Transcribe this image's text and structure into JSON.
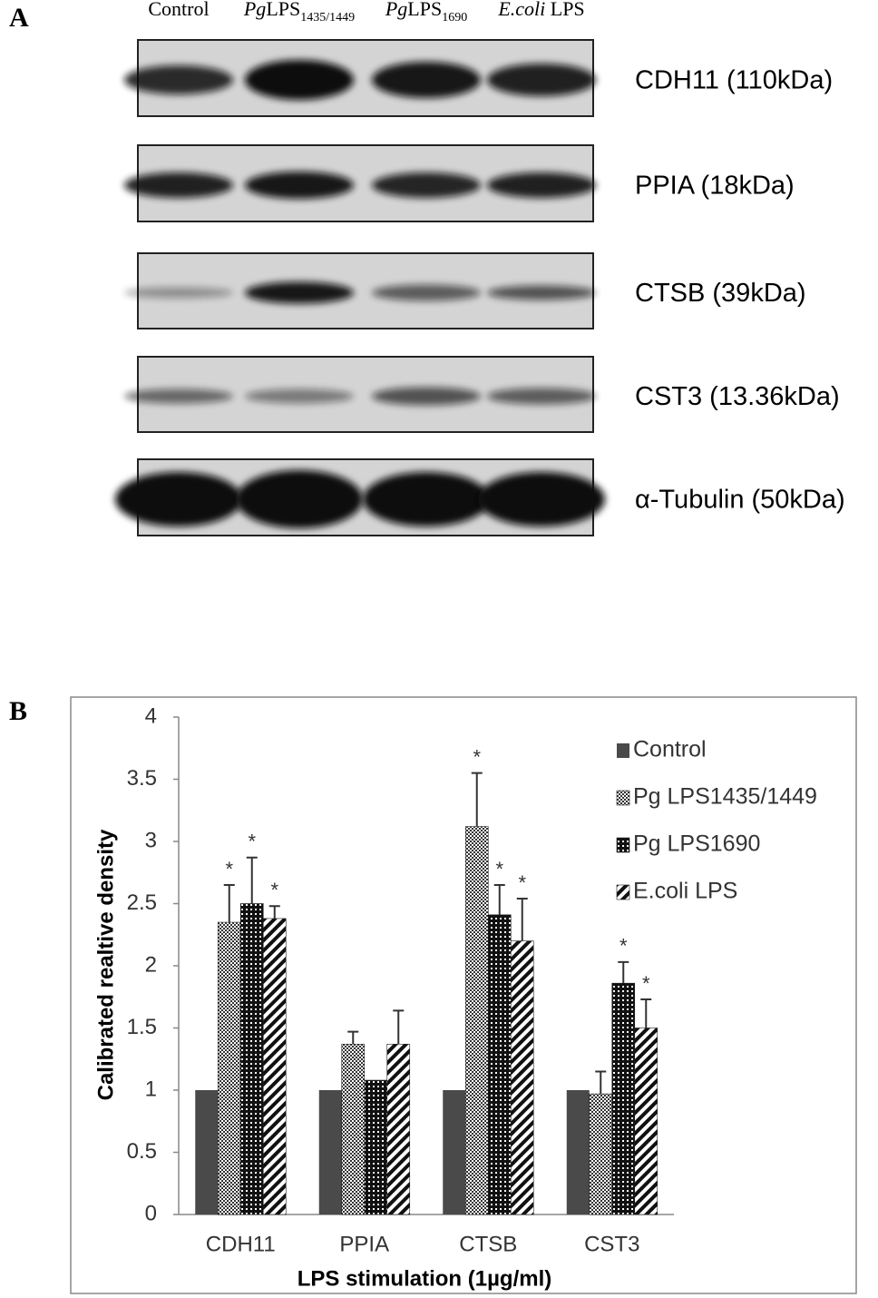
{
  "panel_a": {
    "label": "A",
    "lanes": [
      [
        {
          "text": "Control"
        }
      ],
      [
        {
          "text": "Pg",
          "italic": true
        },
        {
          "text": "LPS"
        },
        {
          "text": "1435/1449",
          "sub": true
        }
      ],
      [
        {
          "text": "Pg",
          "italic": true
        },
        {
          "text": "LPS"
        },
        {
          "text": "1690",
          "sub": true
        }
      ],
      [
        {
          "text": "E.coli",
          "italic": true
        },
        {
          "text": " LPS"
        }
      ]
    ],
    "blots": [
      "CDH11 (110kDa)",
      "PPIA (18kDa)",
      "CTSB (39kDa)",
      "CST3 (13.36kDa)",
      "α-Tubulin (50kDa)"
    ]
  },
  "panel_b": {
    "label": "B"
  },
  "chart_data": {
    "type": "bar",
    "ylabel": "Calibrated realtive density",
    "xlabel": "LPS stimulation (1µg/ml)",
    "categories": [
      "CDH11",
      "PPIA",
      "CTSB",
      "CST3"
    ],
    "ylim": [
      0,
      4
    ],
    "yticks": [
      0,
      0.5,
      1,
      1.5,
      2,
      2.5,
      3,
      3.5,
      4
    ],
    "legend": "upper right",
    "series": [
      {
        "name": "Control",
        "color": "#4a4a4a",
        "pattern": "solid",
        "values": [
          1,
          1,
          1,
          1
        ],
        "errors": [
          null,
          null,
          null,
          null
        ],
        "significance": [
          null,
          null,
          null,
          null
        ]
      },
      {
        "name": "Pg LPS1435/1449",
        "color": "#333333",
        "pattern": "dots-light",
        "values": [
          2.35,
          1.37,
          3.12,
          0.97
        ],
        "errors": [
          0.3,
          0.1,
          0.43,
          0.18
        ],
        "significance": [
          "*",
          null,
          "*",
          null
        ]
      },
      {
        "name": "Pg LPS1690",
        "color": "#111111",
        "pattern": "dots-dark",
        "values": [
          2.5,
          1.08,
          2.41,
          1.86
        ],
        "errors": [
          0.37,
          null,
          0.24,
          0.17
        ],
        "significance": [
          "*",
          null,
          "*",
          "*"
        ]
      },
      {
        "name": "E.coli LPS",
        "color": "#111111",
        "pattern": "stripes",
        "values": [
          2.38,
          1.37,
          2.2,
          1.5
        ],
        "errors": [
          0.1,
          0.27,
          0.34,
          0.23
        ],
        "significance": [
          "*",
          null,
          "*",
          "*"
        ]
      }
    ]
  }
}
